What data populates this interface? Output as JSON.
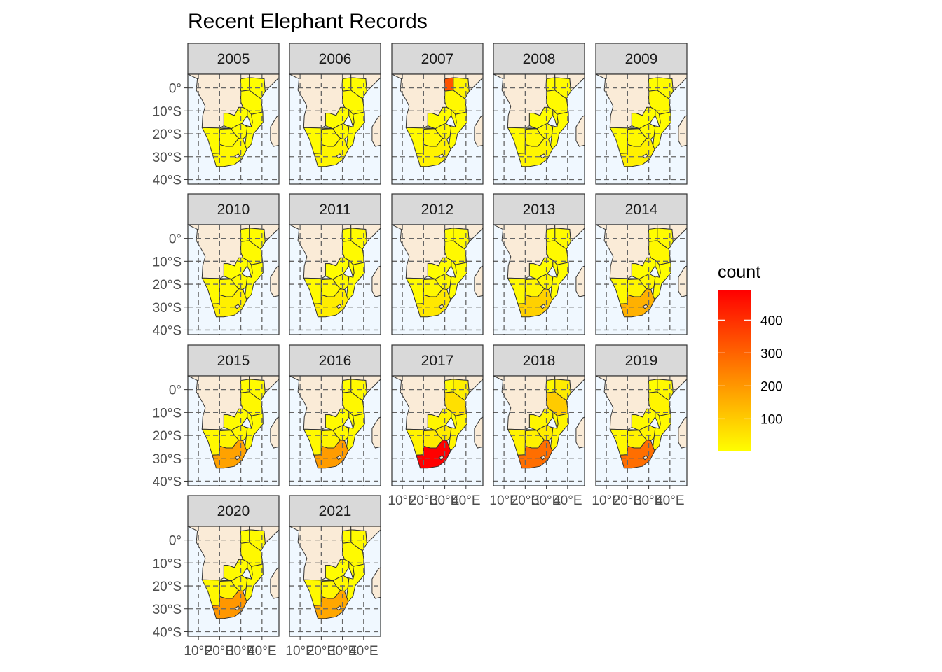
{
  "title": "Recent Elephant Records",
  "legend": {
    "title": "count",
    "breaks": [
      "100",
      "200",
      "300",
      "400"
    ],
    "low_color": "#ffff00",
    "high_color": "#ff0000",
    "range": [
      1,
      490
    ]
  },
  "axes": {
    "lat_labels": [
      "0°",
      "10°S",
      "20°S",
      "30°S",
      "40°S"
    ],
    "lon_labels": [
      "10°E",
      "20°E",
      "30°E",
      "40°E"
    ]
  },
  "colors": {
    "land_unrecorded": "#faebd7",
    "ocean": "#f0f8ff",
    "border": "#333333",
    "strip_bg": "#d9d9d9"
  },
  "chart_data": {
    "type": "map",
    "region": "Southern Africa",
    "facet_by": "year",
    "years": [
      "2005",
      "2006",
      "2007",
      "2008",
      "2009",
      "2010",
      "2011",
      "2012",
      "2013",
      "2014",
      "2015",
      "2016",
      "2017",
      "2018",
      "2019",
      "2020",
      "2021"
    ],
    "countries": [
      "Kenya",
      "Uganda",
      "Tanzania",
      "Malawi",
      "Mozambique",
      "Zambia",
      "Zimbabwe",
      "Botswana",
      "Namibia",
      "South Africa"
    ],
    "counts": [
      {
        "Kenya": 5,
        "Uganda": 5,
        "Tanzania": 8,
        "Malawi": 3,
        "Mozambique": 4,
        "Zambia": 5,
        "Zimbabwe": 8,
        "Botswana": 10,
        "Namibia": 8,
        "South Africa": 15
      },
      {
        "Kenya": 5,
        "Uganda": 3,
        "Tanzania": 10,
        "Malawi": 3,
        "Mozambique": 5,
        "Zambia": 5,
        "Zimbabwe": 10,
        "Botswana": 12,
        "Namibia": 8,
        "South Africa": 20
      },
      {
        "Kenya": 20,
        "Uganda": 330,
        "Tanzania": 15,
        "Malawi": 5,
        "Mozambique": 5,
        "Zambia": 5,
        "Zimbabwe": 10,
        "Botswana": 15,
        "Namibia": 10,
        "South Africa": 25
      },
      {
        "Kenya": 8,
        "Uganda": 5,
        "Tanzania": 10,
        "Malawi": 3,
        "Mozambique": 5,
        "Zambia": 5,
        "Zimbabwe": 10,
        "Botswana": 15,
        "Namibia": 10,
        "South Africa": 20
      },
      {
        "Kenya": 8,
        "Uganda": 5,
        "Tanzania": 10,
        "Malawi": 3,
        "Mozambique": 5,
        "Zambia": 5,
        "Zimbabwe": 10,
        "Botswana": 15,
        "Namibia": 10,
        "South Africa": 30
      },
      {
        "Kenya": 8,
        "Uganda": 5,
        "Tanzania": 10,
        "Malawi": 3,
        "Mozambique": 5,
        "Zambia": 5,
        "Zimbabwe": 12,
        "Botswana": 15,
        "Namibia": 10,
        "South Africa": 30
      },
      {
        "Kenya": 8,
        "Uganda": 5,
        "Tanzania": 10,
        "Malawi": 3,
        "Mozambique": 5,
        "Zambia": 5,
        "Zimbabwe": 12,
        "Botswana": 15,
        "Namibia": 10,
        "South Africa": 35
      },
      {
        "Kenya": 8,
        "Uganda": 5,
        "Tanzania": 12,
        "Malawi": 3,
        "Mozambique": 5,
        "Zambia": 5,
        "Zimbabwe": 12,
        "Botswana": 15,
        "Namibia": 10,
        "South Africa": 45
      },
      {
        "Kenya": 10,
        "Uganda": 5,
        "Tanzania": 12,
        "Malawi": 3,
        "Mozambique": 5,
        "Zambia": 5,
        "Zimbabwe": 15,
        "Botswana": 20,
        "Namibia": 12,
        "South Africa": 90
      },
      {
        "Kenya": 10,
        "Uganda": 5,
        "Tanzania": 15,
        "Malawi": 3,
        "Mozambique": 5,
        "Zambia": 5,
        "Zimbabwe": 15,
        "Botswana": 20,
        "Namibia": 12,
        "South Africa": 150
      },
      {
        "Kenya": 10,
        "Uganda": 5,
        "Tanzania": 15,
        "Malawi": 3,
        "Mozambique": 8,
        "Zambia": 8,
        "Zimbabwe": 15,
        "Botswana": 20,
        "Namibia": 15,
        "South Africa": 180
      },
      {
        "Kenya": 10,
        "Uganda": 5,
        "Tanzania": 15,
        "Malawi": 3,
        "Mozambique": 8,
        "Zambia": 8,
        "Zimbabwe": 15,
        "Botswana": 20,
        "Namibia": 15,
        "South Africa": 190
      },
      {
        "Kenya": 30,
        "Uganda": 10,
        "Tanzania": 60,
        "Malawi": 5,
        "Mozambique": 20,
        "Zambia": 20,
        "Zimbabwe": 40,
        "Botswana": 40,
        "Namibia": 25,
        "South Africa": 490
      },
      {
        "Kenya": 40,
        "Uganda": 10,
        "Tanzania": 100,
        "Malawi": 5,
        "Mozambique": 20,
        "Zambia": 20,
        "Zimbabwe": 40,
        "Botswana": 30,
        "Namibia": 25,
        "South Africa": 280
      },
      {
        "Kenya": 15,
        "Uganda": 5,
        "Tanzania": 20,
        "Malawi": 3,
        "Mozambique": 10,
        "Zambia": 10,
        "Zimbabwe": 20,
        "Botswana": 25,
        "Namibia": 15,
        "South Africa": 280
      },
      {
        "Kenya": 10,
        "Uganda": 5,
        "Tanzania": 15,
        "Malawi": 3,
        "Mozambique": 8,
        "Zambia": 10,
        "Zimbabwe": 15,
        "Botswana": 20,
        "Namibia": 15,
        "South Africa": 200
      },
      {
        "Kenya": 10,
        "Uganda": 5,
        "Tanzania": 10,
        "Malawi": 3,
        "Mozambique": 5,
        "Zambia": 5,
        "Zimbabwe": 15,
        "Botswana": 15,
        "Namibia": 15,
        "South Africa": 170
      }
    ]
  }
}
